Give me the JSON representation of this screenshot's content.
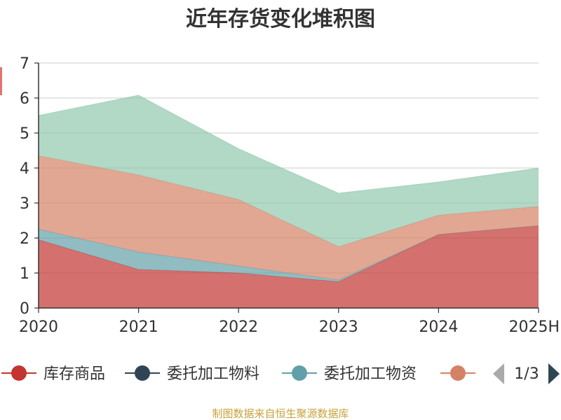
{
  "chart_data": {
    "type": "area",
    "stacked": true,
    "title": "近年存货变化堆积图",
    "x": [
      "2020",
      "2021",
      "2022",
      "2023",
      "2024",
      "2025H"
    ],
    "ylim": [
      0,
      7
    ],
    "yticks": [
      "0",
      "1",
      "2",
      "3",
      "4",
      "5",
      "6",
      "7"
    ],
    "grid": true,
    "legend_position": "bottom",
    "series": [
      {
        "name": "库存商品",
        "color": "#c23531",
        "values": [
          1.95,
          1.1,
          1.0,
          0.75,
          2.1,
          2.35
        ]
      },
      {
        "name": "委托加工物料",
        "color": "#2f4554",
        "values": [
          0,
          0,
          0,
          0,
          0,
          0
        ]
      },
      {
        "name": "委托加工物资",
        "color": "#61a0a8",
        "values": [
          0.3,
          0.5,
          0.2,
          0.05,
          0,
          0
        ]
      },
      {
        "name": "",
        "color": "#d48265",
        "values": [
          2.1,
          2.2,
          1.9,
          0.95,
          0.55,
          0.55
        ]
      },
      {
        "name": "",
        "color": "#91c7ae",
        "values": [
          1.15,
          2.28,
          1.45,
          1.53,
          0.95,
          1.1
        ]
      }
    ]
  },
  "legend": {
    "items": [
      {
        "label": "库存商品",
        "color": "#c23531"
      },
      {
        "label": "委托加工物料",
        "color": "#2f4554"
      },
      {
        "label": "委托加工物资",
        "color": "#61a0a8"
      },
      {
        "label": "",
        "color": "#d48265"
      }
    ],
    "page_indicator": "1/3",
    "icons": [
      "triangle-left-icon",
      "triangle-right-icon"
    ]
  },
  "source_text": "制图数据来自恒生聚源数据库",
  "fill_colors": [
    "#d06f6d",
    "#8fb8be",
    "#b2d7c6",
    "#9eb9a6"
  ],
  "axis_title_color": "#cc0000"
}
